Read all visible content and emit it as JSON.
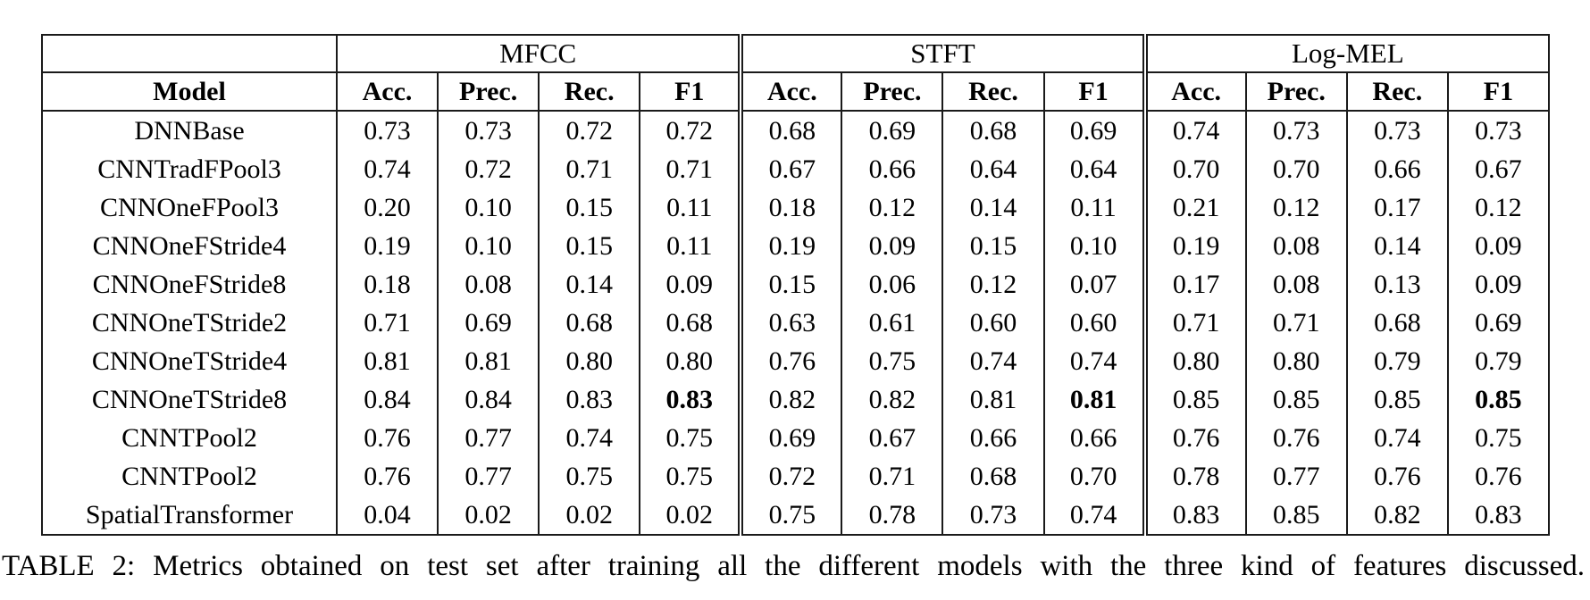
{
  "colors": {
    "text": "#000000",
    "border": "#1a1a1a",
    "background": "#ffffff"
  },
  "table": {
    "caption": "TABLE 2: Metrics obtained on test set after training all the different models with the three kind of features discussed.",
    "model_header": "Model",
    "groups": [
      {
        "label": "MFCC"
      },
      {
        "label": "STFT"
      },
      {
        "label": "Log-MEL"
      }
    ],
    "metric_headers": [
      "Acc.",
      "Prec.",
      "Rec.",
      "F1"
    ],
    "rows": [
      {
        "model": "DNNBase",
        "values": [
          "0.73",
          "0.73",
          "0.72",
          "0.72",
          "0.68",
          "0.69",
          "0.68",
          "0.69",
          "0.74",
          "0.73",
          "0.73",
          "0.73"
        ],
        "bold": []
      },
      {
        "model": "CNNTradFPool3",
        "values": [
          "0.74",
          "0.72",
          "0.71",
          "0.71",
          "0.67",
          "0.66",
          "0.64",
          "0.64",
          "0.70",
          "0.70",
          "0.66",
          "0.67"
        ],
        "bold": []
      },
      {
        "model": "CNNOneFPool3",
        "values": [
          "0.20",
          "0.10",
          "0.15",
          "0.11",
          "0.18",
          "0.12",
          "0.14",
          "0.11",
          "0.21",
          "0.12",
          "0.17",
          "0.12"
        ],
        "bold": []
      },
      {
        "model": "CNNOneFStride4",
        "values": [
          "0.19",
          "0.10",
          "0.15",
          "0.11",
          "0.19",
          "0.09",
          "0.15",
          "0.10",
          "0.19",
          "0.08",
          "0.14",
          "0.09"
        ],
        "bold": []
      },
      {
        "model": "CNNOneFStride8",
        "values": [
          "0.18",
          "0.08",
          "0.14",
          "0.09",
          "0.15",
          "0.06",
          "0.12",
          "0.07",
          "0.17",
          "0.08",
          "0.13",
          "0.09"
        ],
        "bold": []
      },
      {
        "model": "CNNOneTStride2",
        "values": [
          "0.71",
          "0.69",
          "0.68",
          "0.68",
          "0.63",
          "0.61",
          "0.60",
          "0.60",
          "0.71",
          "0.71",
          "0.68",
          "0.69"
        ],
        "bold": []
      },
      {
        "model": "CNNOneTStride4",
        "values": [
          "0.81",
          "0.81",
          "0.80",
          "0.80",
          "0.76",
          "0.75",
          "0.74",
          "0.74",
          "0.80",
          "0.80",
          "0.79",
          "0.79"
        ],
        "bold": []
      },
      {
        "model": "CNNOneTStride8",
        "values": [
          "0.84",
          "0.84",
          "0.83",
          "0.83",
          "0.82",
          "0.82",
          "0.81",
          "0.81",
          "0.85",
          "0.85",
          "0.85",
          "0.85"
        ],
        "bold": [
          3,
          7,
          11
        ]
      },
      {
        "model": "CNNTPool2",
        "values": [
          "0.76",
          "0.77",
          "0.74",
          "0.75",
          "0.69",
          "0.67",
          "0.66",
          "0.66",
          "0.76",
          "0.76",
          "0.74",
          "0.75"
        ],
        "bold": []
      },
      {
        "model": "CNNTPool2",
        "values": [
          "0.76",
          "0.77",
          "0.75",
          "0.75",
          "0.72",
          "0.71",
          "0.68",
          "0.70",
          "0.78",
          "0.77",
          "0.76",
          "0.76"
        ],
        "bold": []
      },
      {
        "model": "SpatialTransformer",
        "values": [
          "0.04",
          "0.02",
          "0.02",
          "0.02",
          "0.75",
          "0.78",
          "0.73",
          "0.74",
          "0.83",
          "0.85",
          "0.82",
          "0.83"
        ],
        "bold": []
      }
    ]
  }
}
